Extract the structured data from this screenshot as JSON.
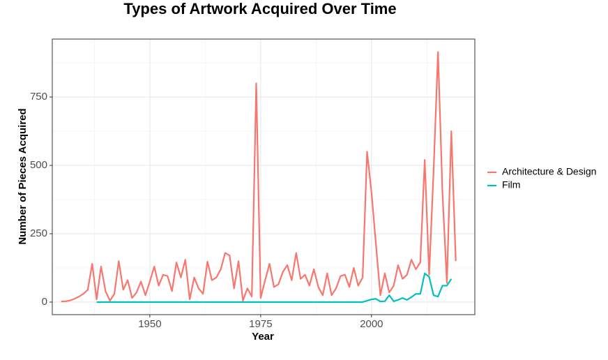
{
  "chart_data": {
    "type": "line",
    "title": "Types of Artwork Acquired Over Time",
    "x_label": "Year",
    "y_label": "Number of Pieces Acquired",
    "x": [
      1930,
      1931,
      1932,
      1933,
      1934,
      1935,
      1936,
      1937,
      1938,
      1939,
      1940,
      1941,
      1942,
      1943,
      1944,
      1945,
      1946,
      1947,
      1948,
      1949,
      1950,
      1951,
      1952,
      1953,
      1954,
      1955,
      1956,
      1957,
      1958,
      1959,
      1960,
      1961,
      1962,
      1963,
      1964,
      1965,
      1966,
      1967,
      1968,
      1969,
      1970,
      1971,
      1972,
      1973,
      1974,
      1975,
      1976,
      1977,
      1978,
      1979,
      1980,
      1981,
      1982,
      1983,
      1984,
      1985,
      1986,
      1987,
      1988,
      1989,
      1990,
      1991,
      1992,
      1993,
      1994,
      1995,
      1996,
      1997,
      1998,
      1999,
      2000,
      2001,
      2002,
      2003,
      2004,
      2005,
      2006,
      2007,
      2008,
      2009,
      2010,
      2011,
      2012,
      2013,
      2014,
      2015,
      2016,
      2017,
      2018,
      2019
    ],
    "series": [
      {
        "name": "Architecture & Design",
        "color": "#f8766d",
        "values": [
          2,
          3,
          6,
          12,
          20,
          30,
          45,
          140,
          10,
          130,
          40,
          5,
          30,
          150,
          45,
          80,
          15,
          35,
          75,
          25,
          75,
          130,
          60,
          100,
          95,
          40,
          145,
          90,
          155,
          10,
          90,
          50,
          30,
          148,
          80,
          90,
          120,
          180,
          170,
          50,
          150,
          5,
          50,
          20,
          800,
          15,
          80,
          140,
          55,
          65,
          110,
          135,
          80,
          180,
          85,
          100,
          60,
          120,
          55,
          25,
          105,
          25,
          50,
          95,
          100,
          55,
          125,
          60,
          90,
          550,
          400,
          210,
          25,
          105,
          35,
          60,
          135,
          85,
          100,
          155,
          120,
          145,
          520,
          100,
          480,
          915,
          400,
          70,
          625,
          150
        ]
      },
      {
        "name": "Film",
        "color": "#00bfc4",
        "values": [
          null,
          null,
          null,
          null,
          null,
          null,
          null,
          null,
          0,
          0,
          0,
          0,
          0,
          0,
          0,
          0,
          0,
          0,
          0,
          0,
          0,
          0,
          0,
          0,
          0,
          0,
          0,
          0,
          0,
          0,
          0,
          0,
          0,
          0,
          0,
          0,
          0,
          0,
          0,
          0,
          0,
          0,
          0,
          0,
          0,
          0,
          0,
          0,
          0,
          0,
          0,
          0,
          0,
          0,
          0,
          0,
          0,
          0,
          0,
          0,
          0,
          0,
          0,
          0,
          0,
          0,
          0,
          0,
          0,
          5,
          10,
          12,
          2,
          3,
          25,
          3,
          8,
          15,
          8,
          18,
          30,
          30,
          105,
          92,
          25,
          20,
          60,
          60,
          85,
          null
        ]
      }
    ],
    "xlim": [
      1928,
      2023.3
    ],
    "xticks": [
      1950,
      1975,
      2000
    ],
    "ylim": [
      -46,
      962
    ],
    "yticks": [
      0,
      250,
      500,
      750
    ],
    "grid": true,
    "legend": "right"
  }
}
